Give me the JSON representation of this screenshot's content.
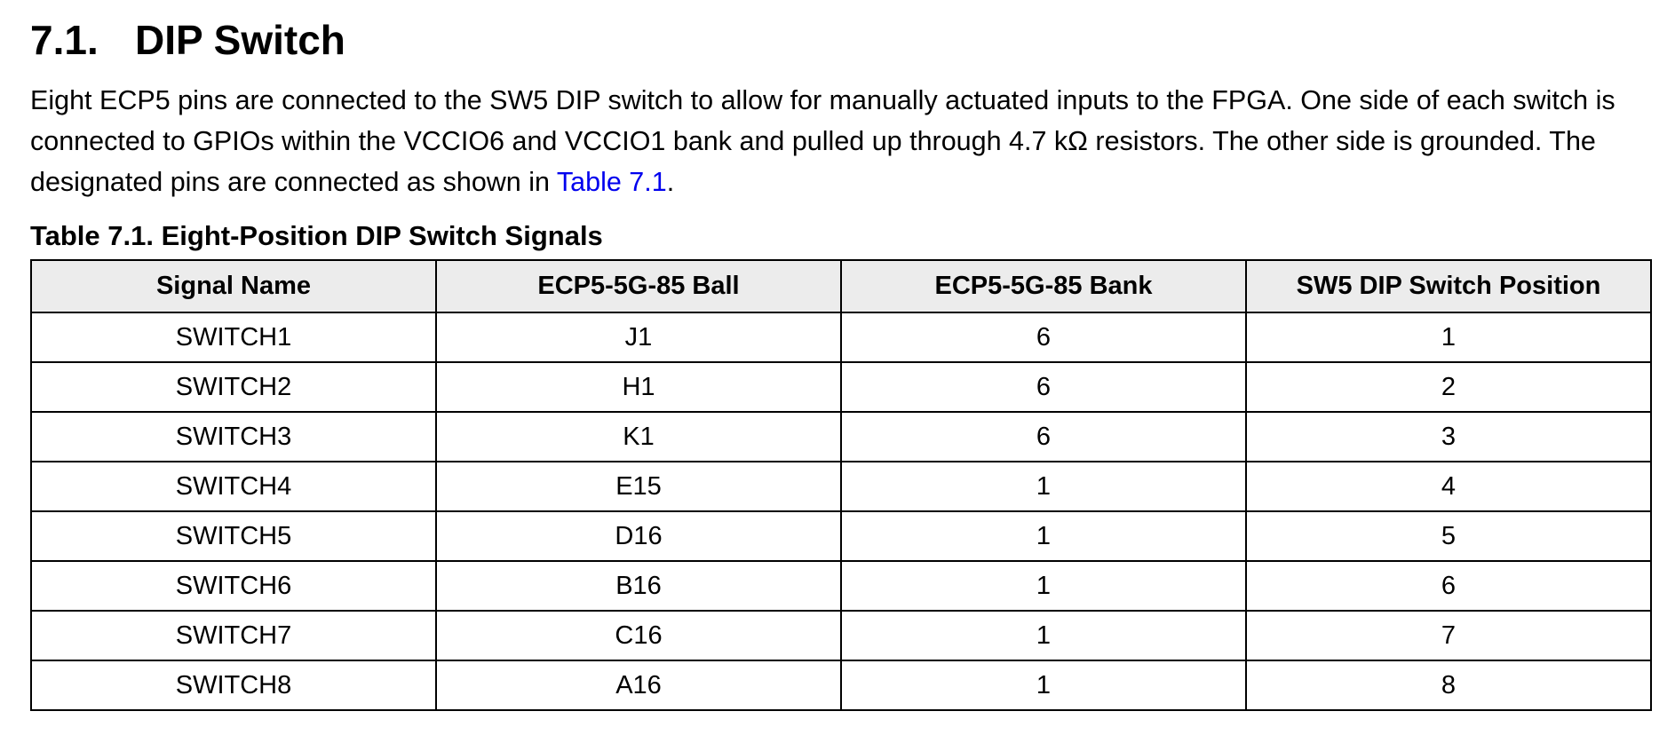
{
  "section": {
    "number": "7.1.",
    "title": "DIP Switch"
  },
  "intro": {
    "text_before_link": "Eight ECP5 pins are connected to the SW5 DIP switch to allow for manually actuated inputs to the FPGA. One side of each switch is connected to GPIOs within the VCCIO6 and VCCIO1 bank and pulled up through 4.7 kΩ resistors. The other side is grounded. The designated pins are connected as shown in ",
    "link_text": "Table 7.1",
    "text_after_link": "."
  },
  "table": {
    "caption": "Table 7.1. Eight-Position DIP Switch Signals",
    "headers": [
      "Signal Name",
      "ECP5-5G-85 Ball",
      "ECP5-5G-85 Bank",
      "SW5 DIP Switch Position"
    ],
    "rows": [
      [
        "SWITCH1",
        "J1",
        "6",
        "1"
      ],
      [
        "SWITCH2",
        "H1",
        "6",
        "2"
      ],
      [
        "SWITCH3",
        "K1",
        "6",
        "3"
      ],
      [
        "SWITCH4",
        "E15",
        "1",
        "4"
      ],
      [
        "SWITCH5",
        "D16",
        "1",
        "5"
      ],
      [
        "SWITCH6",
        "B16",
        "1",
        "6"
      ],
      [
        "SWITCH7",
        "C16",
        "1",
        "7"
      ],
      [
        "SWITCH8",
        "A16",
        "1",
        "8"
      ]
    ]
  }
}
